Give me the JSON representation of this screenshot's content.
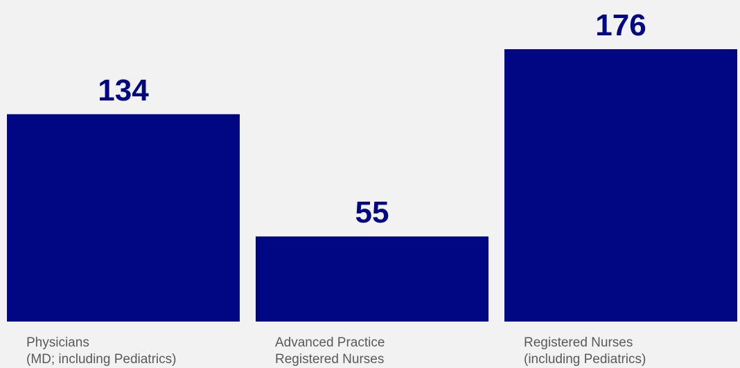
{
  "chart_data": {
    "type": "bar",
    "categories": [
      [
        "Physicians",
        "(MD; including Pediatrics)"
      ],
      [
        "Advanced Practice",
        "Registered Nurses"
      ],
      [
        "Registered Nurses",
        "(including Pediatrics)"
      ]
    ],
    "values": [
      134,
      55,
      176
    ],
    "data_labels": [
      "134",
      "55",
      "176"
    ],
    "ylim": [
      0,
      176
    ],
    "grid": false,
    "legend": "none"
  },
  "colors": {
    "bar": "#000782",
    "value_label": "#000782",
    "category_label": "#595959",
    "background": "#f2f2f2"
  }
}
